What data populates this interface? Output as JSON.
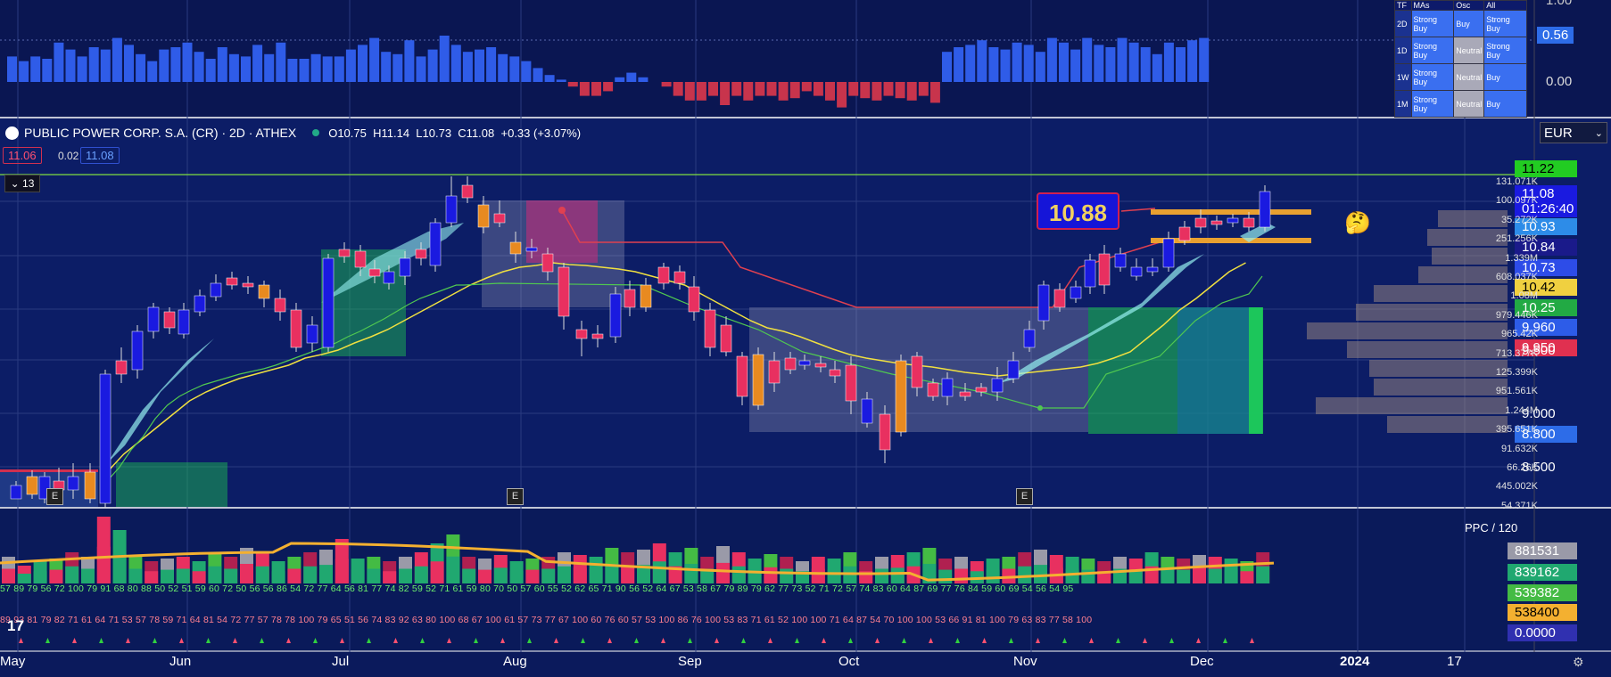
{
  "header": {
    "symbol": "PUBLIC POWER CORP. S.A. (CR) · 2D · ATHEX",
    "open": "O10.75",
    "high": "H11.14",
    "low": "L10.73",
    "close": "C11.08",
    "change": "+0.33 (+3.07%)",
    "bid": "11.06",
    "spread": "0.02",
    "ask": "11.08",
    "collapse": "13"
  },
  "currency": "EUR",
  "rating_table": {
    "headers": [
      "TF",
      "MAs",
      "Osc",
      "All"
    ],
    "rows": [
      {
        "tf": "2D",
        "mas": "Strong Buy",
        "osc": "Buy",
        "all": "Strong Buy"
      },
      {
        "tf": "1D",
        "mas": "Strong Buy",
        "osc": "Neutral",
        "all": "Strong Buy"
      },
      {
        "tf": "1W",
        "mas": "Strong Buy",
        "osc": "Neutral",
        "all": "Buy"
      },
      {
        "tf": "1M",
        "mas": "Strong Buy",
        "osc": "Neutral",
        "all": "Buy"
      }
    ]
  },
  "top_osc": {
    "label1": "1.00",
    "label2": "0.56",
    "label3": "0.00"
  },
  "price_labels": [
    {
      "v": "11.22",
      "bg": "#22cc22",
      "color": "#000"
    },
    {
      "v": "11.08",
      "v2": "01:26:40",
      "bg": "#1a1ae0",
      "color": "#fff"
    },
    {
      "v": "10.93",
      "bg": "#2d8ce8",
      "color": "#fff"
    },
    {
      "v": "10.84",
      "bg": "#1a1a8a",
      "color": "#fff"
    },
    {
      "v": "10.73",
      "bg": "#2d4ce8",
      "color": "#fff"
    },
    {
      "v": "10.42",
      "bg": "#f0d040",
      "color": "#000"
    },
    {
      "v": "10.25",
      "bg": "#22aa44",
      "color": "#fff"
    },
    {
      "v": "9.960",
      "bg": "#2d5ce8",
      "color": "#fff"
    },
    {
      "v": "9.950",
      "bg": "#e03050",
      "color": "#fff"
    },
    {
      "v": "8.800",
      "bg": "#2d6ce8",
      "color": "#fff"
    }
  ],
  "axis_prices": [
    "9.500",
    "9.000",
    "8.500"
  ],
  "volume_profile_labels": [
    "131.071K",
    "100.097K",
    "35.272K",
    "251.256K",
    "1.339M",
    "608.037K",
    "1.08M",
    "979.446K",
    "965.42K",
    "713.377K",
    "125.399K",
    "951.561K",
    "1.244M",
    "395.651K",
    "91.632K",
    "66.26K",
    "445.002K",
    "54.371K"
  ],
  "callout": "10.88",
  "volume_pane": {
    "title": "PPC / 120",
    "labels": [
      {
        "v": "881531",
        "bg": "#9a9aa8",
        "color": "#fff"
      },
      {
        "v": "839162",
        "bg": "#20a870",
        "color": "#fff"
      },
      {
        "v": "539382",
        "bg": "#44bb44",
        "color": "#fff"
      },
      {
        "v": "538400",
        "bg": "#f4b030",
        "color": "#000"
      },
      {
        "v": "0.0000",
        "bg": "#3030b0",
        "color": "#fff"
      }
    ],
    "row1": "57 89 79 56 72 100 79 91 68 80 88 50 52 51 59 60 72 50 56 56 86 54 72 77 64 56 81 77 74 82 59 52 71 61 59 80 70 50 57 60 55 52 62 65 71 90 56 52 64 67 53 58 67 79 89 79 62 77 73 52 71 72 57 74 83 60 64 87 69 77 76 84 59 60 69 54 56 54 95",
    "row2": "89 93 81 79 82 71 61 64 71 53 57 78 59 71 64 81 54 72 77 57 78 78 100 79 65 51 56 74 83 92 63 80 100 68 67 100 61 57 73 77 67 100 60 76 60 57 53 100 86 76 100 53 83 71 61 52 100 100 71 64 87 54 70 100 100 53 66 91 81 100 79 63 83 77 58 100"
  },
  "x_labels": [
    "May",
    "Jun",
    "Jul",
    "Aug",
    "Sep",
    "Oct",
    "Nov",
    "Dec",
    "2024",
    "17"
  ],
  "emoji": "🤔"
}
